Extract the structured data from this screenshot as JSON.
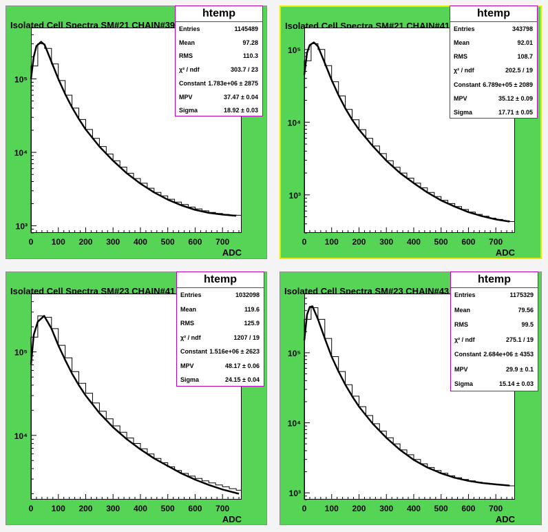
{
  "pads": [
    {
      "title": "Isolated Cell Spectra SM#21 CHAIN#39",
      "selected": false,
      "stats": {
        "name": "htemp",
        "rows": [
          {
            "label": "Entries",
            "value": "1145489"
          },
          {
            "label": "Mean",
            "value": "97.28"
          },
          {
            "label": "RMS",
            "value": "110.3"
          },
          {
            "label": "χ² / ndf",
            "value": "303.7 / 23"
          },
          {
            "label": "Constant",
            "value": "1.783e+06 ± 2875"
          },
          {
            "label": "MPV",
            "value": "37.47 ± 0.04"
          },
          {
            "label": "Sigma",
            "value": "18.92 ± 0.03"
          }
        ]
      }
    },
    {
      "title": "Isolated Cell Spectra SM#21 CHAIN#41",
      "selected": true,
      "stats": {
        "name": "htemp",
        "rows": [
          {
            "label": "Entries",
            "value": "343798"
          },
          {
            "label": "Mean",
            "value": "92.01"
          },
          {
            "label": "RMS",
            "value": "108.7"
          },
          {
            "label": "χ² / ndf",
            "value": "202.5 / 19"
          },
          {
            "label": "Constant",
            "value": "6.789e+05 ± 2089"
          },
          {
            "label": "MPV",
            "value": "35.12 ± 0.09"
          },
          {
            "label": "Sigma",
            "value": "17.71 ± 0.05"
          }
        ]
      }
    },
    {
      "title": "Isolated Cell Spectra SM#23 CHAIN#41",
      "selected": false,
      "stats": {
        "name": "htemp",
        "rows": [
          {
            "label": "Entries",
            "value": "1032098"
          },
          {
            "label": "Mean",
            "value": "119.6"
          },
          {
            "label": "RMS",
            "value": "125.9"
          },
          {
            "label": "χ² / ndf",
            "value": "1207 / 19"
          },
          {
            "label": "Constant",
            "value": "1.516e+06 ± 2623"
          },
          {
            "label": "MPV",
            "value": "48.17 ± 0.06"
          },
          {
            "label": "Sigma",
            "value": "24.15 ± 0.04"
          }
        ]
      }
    },
    {
      "title": "Isolated Cell Spectra SM#23 CHAIN#43",
      "selected": false,
      "stats": {
        "name": "htemp",
        "rows": [
          {
            "label": "Entries",
            "value": "1175329"
          },
          {
            "label": "Mean",
            "value": "79.56"
          },
          {
            "label": "RMS",
            "value": "99.5"
          },
          {
            "label": "χ² / ndf",
            "value": "275.1 / 19"
          },
          {
            "label": "Constant",
            "value": "2.684e+06 ± 4353"
          },
          {
            "label": "MPV",
            "value": "29.9 ± 0.1"
          },
          {
            "label": "Sigma",
            "value": "15.14 ± 0.03"
          }
        ]
      }
    }
  ],
  "chart_data": [
    {
      "type": "line",
      "title": "Isolated Cell Spectra SM#21 CHAIN#39",
      "xlabel": "ADC",
      "ylabel": "",
      "xlim": [
        0,
        770
      ],
      "ylim": [
        800,
        500000
      ],
      "yscale": "log",
      "xticks": [
        0,
        100,
        200,
        300,
        400,
        500,
        600,
        700
      ],
      "yticks": [
        {
          "value": 1000,
          "label": "10³"
        },
        {
          "value": 10000,
          "label": "10⁴"
        },
        {
          "value": 100000,
          "label": "10⁵"
        }
      ],
      "series": [
        {
          "style": "histogram-steps",
          "x": [
            0,
            25,
            50,
            75,
            100,
            125,
            150,
            175,
            200,
            225,
            250,
            275,
            300,
            325,
            350,
            375,
            400,
            425,
            450,
            475,
            500,
            525,
            550,
            575,
            600,
            625,
            650,
            675,
            700,
            725,
            750
          ],
          "y": [
            150000,
            300000,
            260000,
            160000,
            95000,
            60000,
            40000,
            28000,
            20500,
            15500,
            12000,
            9500,
            7700,
            6300,
            5200,
            4400,
            3800,
            3250,
            2850,
            2550,
            2300,
            2100,
            1950,
            1800,
            1700,
            1600,
            1520,
            1470,
            1430,
            1400,
            1390
          ]
        },
        {
          "style": "fit-curve",
          "x": [
            0,
            10,
            20,
            37,
            50,
            75,
            100,
            125,
            150,
            175,
            200,
            250,
            300,
            350,
            400,
            450,
            500,
            550,
            600,
            650,
            700,
            750
          ],
          "y": [
            100000,
            200000,
            280000,
            320000,
            290000,
            170000,
            100000,
            62000,
            41000,
            28500,
            20500,
            12000,
            7700,
            5200,
            3750,
            2850,
            2270,
            1900,
            1650,
            1500,
            1420,
            1370
          ]
        }
      ]
    },
    {
      "type": "line",
      "title": "Isolated Cell Spectra SM#21 CHAIN#41",
      "xlabel": "ADC",
      "ylabel": "",
      "xlim": [
        0,
        770
      ],
      "ylim": [
        300,
        200000
      ],
      "yscale": "log",
      "xticks": [
        0,
        100,
        200,
        300,
        400,
        500,
        600,
        700
      ],
      "yticks": [
        {
          "value": 1000,
          "label": "10³"
        },
        {
          "value": 10000,
          "label": "10⁴"
        },
        {
          "value": 100000,
          "label": "10⁵"
        }
      ],
      "series": [
        {
          "style": "histogram-steps",
          "x": [
            0,
            25,
            50,
            75,
            100,
            125,
            150,
            175,
            200,
            225,
            250,
            275,
            300,
            325,
            350,
            375,
            400,
            425,
            450,
            475,
            500,
            525,
            550,
            575,
            600,
            625,
            650,
            675,
            700,
            725,
            750
          ],
          "y": [
            70000,
            120000,
            100000,
            60000,
            36000,
            23000,
            15000,
            10800,
            7900,
            6000,
            4700,
            3700,
            2950,
            2400,
            2000,
            1700,
            1450,
            1250,
            1080,
            950,
            840,
            760,
            690,
            630,
            580,
            540,
            510,
            480,
            460,
            440,
            430
          ]
        },
        {
          "style": "fit-curve",
          "x": [
            0,
            10,
            20,
            35,
            50,
            75,
            100,
            125,
            150,
            175,
            200,
            250,
            300,
            350,
            400,
            450,
            500,
            550,
            600,
            650,
            700,
            750
          ],
          "y": [
            45000,
            90000,
            115000,
            125000,
            110000,
            65000,
            38000,
            23500,
            15500,
            10800,
            7900,
            4700,
            2950,
            2000,
            1450,
            1080,
            840,
            690,
            580,
            510,
            460,
            430
          ]
        }
      ]
    },
    {
      "type": "line",
      "title": "Isolated Cell Spectra SM#23 CHAIN#41",
      "xlabel": "ADC",
      "ylabel": "",
      "xlim": [
        0,
        770
      ],
      "ylim": [
        1700,
        500000
      ],
      "yscale": "log",
      "xticks": [
        0,
        100,
        200,
        300,
        400,
        500,
        600,
        700
      ],
      "yticks": [
        {
          "value": 10000,
          "label": "10⁴"
        },
        {
          "value": 100000,
          "label": "10⁵"
        }
      ],
      "series": [
        {
          "style": "histogram-steps",
          "x": [
            0,
            25,
            50,
            75,
            100,
            125,
            150,
            175,
            200,
            225,
            250,
            275,
            300,
            325,
            350,
            375,
            400,
            425,
            450,
            475,
            500,
            525,
            550,
            575,
            600,
            625,
            650,
            675,
            700,
            725,
            750
          ],
          "y": [
            150000,
            270000,
            260000,
            190000,
            120000,
            85000,
            58000,
            42000,
            32000,
            24500,
            19500,
            15800,
            13000,
            10900,
            9300,
            8000,
            6900,
            6000,
            5300,
            4700,
            4200,
            3800,
            3500,
            3250,
            3050,
            2850,
            2700,
            2550,
            2420,
            2300,
            2200
          ]
        },
        {
          "style": "fit-curve",
          "x": [
            0,
            10,
            25,
            48,
            75,
            100,
            125,
            150,
            175,
            200,
            250,
            300,
            350,
            400,
            450,
            500,
            550,
            600,
            650,
            700,
            760
          ],
          "y": [
            70000,
            160000,
            230000,
            270000,
            190000,
            120000,
            80000,
            55000,
            40000,
            30000,
            18500,
            12500,
            9000,
            6800,
            5300,
            4300,
            3500,
            2950,
            2550,
            2250,
            2000
          ]
        }
      ]
    },
    {
      "type": "line",
      "title": "Isolated Cell Spectra SM#23 CHAIN#43",
      "xlabel": "ADC",
      "ylabel": "",
      "xlim": [
        0,
        770
      ],
      "ylim": [
        800,
        700000
      ],
      "yscale": "log",
      "xticks": [
        0,
        100,
        200,
        300,
        400,
        500,
        600,
        700
      ],
      "yticks": [
        {
          "value": 1000,
          "label": "10³"
        },
        {
          "value": 10000,
          "label": "10⁴"
        },
        {
          "value": 100000,
          "label": "10⁵"
        }
      ],
      "series": [
        {
          "style": "histogram-steps",
          "x": [
            0,
            25,
            50,
            75,
            100,
            125,
            150,
            175,
            200,
            225,
            250,
            275,
            300,
            325,
            350,
            375,
            400,
            425,
            450,
            475,
            500,
            525,
            550,
            575,
            600,
            625,
            650,
            675,
            700,
            725,
            750
          ],
          "y": [
            300000,
            440000,
            300000,
            160000,
            88000,
            54000,
            35000,
            24000,
            17000,
            12700,
            9700,
            7600,
            6100,
            5000,
            4100,
            3500,
            3000,
            2600,
            2300,
            2080,
            1900,
            1750,
            1640,
            1550,
            1480,
            1420,
            1370,
            1330,
            1300,
            1280,
            1260
          ]
        },
        {
          "style": "fit-curve",
          "x": [
            0,
            10,
            20,
            30,
            50,
            75,
            100,
            125,
            150,
            175,
            200,
            250,
            300,
            350,
            400,
            450,
            500,
            550,
            600,
            650,
            700,
            750
          ],
          "y": [
            150000,
            350000,
            450000,
            460000,
            300000,
            160000,
            88000,
            54000,
            35000,
            24000,
            17000,
            9700,
            6100,
            4100,
            2950,
            2300,
            1900,
            1640,
            1480,
            1380,
            1320,
            1270
          ]
        }
      ]
    }
  ]
}
